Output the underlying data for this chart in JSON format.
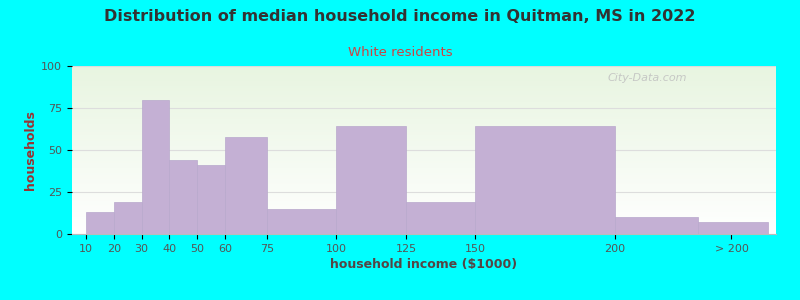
{
  "title": "Distribution of median household income in Quitman, MS in 2022",
  "subtitle": "White residents",
  "xlabel": "household income ($1000)",
  "ylabel": "households",
  "title_fontsize": 11.5,
  "subtitle_fontsize": 9.5,
  "label_fontsize": 9,
  "tick_fontsize": 8,
  "background_color": "#00FFFF",
  "bar_color": "#c4b0d4",
  "bar_edge_color": "#b8a8cc",
  "values": [
    13,
    19,
    80,
    44,
    41,
    58,
    15,
    64,
    19,
    64,
    10,
    7
  ],
  "ylim": [
    0,
    100
  ],
  "yticks": [
    0,
    25,
    50,
    75,
    100
  ],
  "watermark": "City-Data.com",
  "title_color": "#333333",
  "subtitle_color": "#cc4444",
  "ylabel_color": "#993333",
  "xlabel_color": "#554444",
  "grid_color": "#dddddd"
}
